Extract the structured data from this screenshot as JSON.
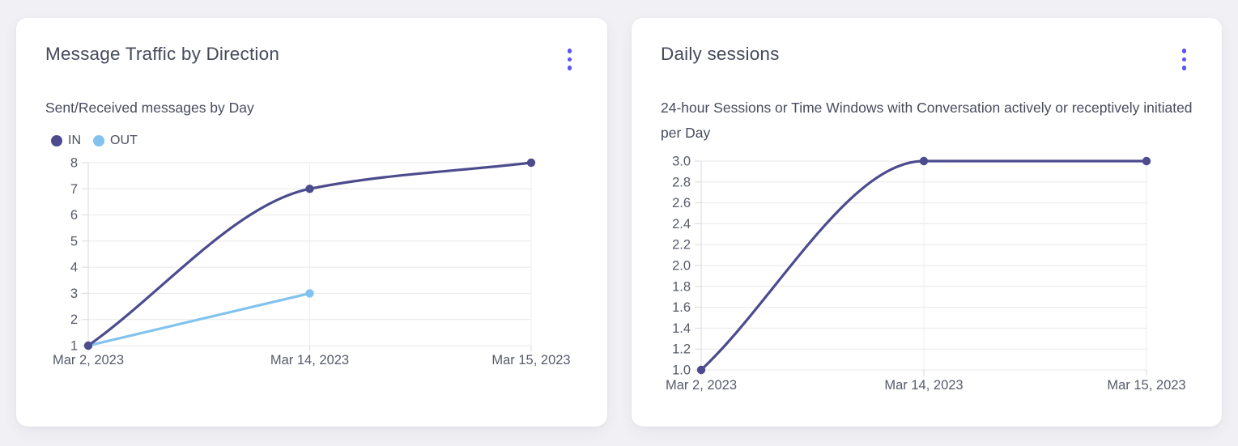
{
  "ui": {
    "accent": "#5b53f6",
    "page_background": "#f1f1f5",
    "card_background": "#ffffff"
  },
  "icons": {
    "kebab_menu": "⋮"
  },
  "cards": [
    {
      "menu_icon": "kebab-menu-icon"
    },
    {
      "menu_icon": "kebab-menu-icon"
    }
  ],
  "chart_data": [
    {
      "type": "line",
      "title": "Message Traffic by Direction",
      "subtitle": "Sent/Received messages by Day",
      "x_categories": [
        "Mar 2, 2023",
        "Mar 14, 2023",
        "Mar 15, 2023"
      ],
      "series": [
        {
          "name": "IN",
          "color": "#4c4b8e",
          "values": [
            1,
            7,
            8
          ]
        },
        {
          "name": "OUT",
          "color": "#82c3ee",
          "values": [
            1,
            3,
            null
          ]
        }
      ],
      "ylim": [
        1,
        8
      ],
      "yticks": [
        {
          "v": 8,
          "label": "8"
        },
        {
          "v": 7,
          "label": "7"
        },
        {
          "v": 6,
          "label": "6"
        },
        {
          "v": 5,
          "label": "5"
        },
        {
          "v": 4,
          "label": "4"
        },
        {
          "v": 3,
          "label": "3"
        },
        {
          "v": 2,
          "label": "2"
        },
        {
          "v": 1,
          "label": "1"
        }
      ],
      "grid": true,
      "curve": "monotone",
      "legend_position": "top-left"
    },
    {
      "type": "line",
      "title": "Daily sessions",
      "subtitle": "24-hour Sessions or Time Windows with Conversation actively or receptively initiated per Day",
      "x_categories": [
        "Mar 2, 2023",
        "Mar 14, 2023",
        "Mar 15, 2023"
      ],
      "series": [
        {
          "name": "Daily sessions",
          "color": "#4c4b8e",
          "values": [
            1,
            3,
            3
          ]
        }
      ],
      "ylim": [
        1,
        3
      ],
      "yticks": [
        {
          "v": 3.0,
          "label": "3.0"
        },
        {
          "v": 2.8,
          "label": "2.8"
        },
        {
          "v": 2.6,
          "label": "2.6"
        },
        {
          "v": 2.4,
          "label": "2.4"
        },
        {
          "v": 2.2,
          "label": "2.2"
        },
        {
          "v": 2.0,
          "label": "2.0"
        },
        {
          "v": 1.8,
          "label": "1.8"
        },
        {
          "v": 1.6,
          "label": "1.6"
        },
        {
          "v": 1.4,
          "label": "1.4"
        },
        {
          "v": 1.2,
          "label": "1.2"
        },
        {
          "v": 1.0,
          "label": "1.0"
        }
      ],
      "grid": true,
      "curve": "monotone",
      "legend_position": "none"
    }
  ]
}
